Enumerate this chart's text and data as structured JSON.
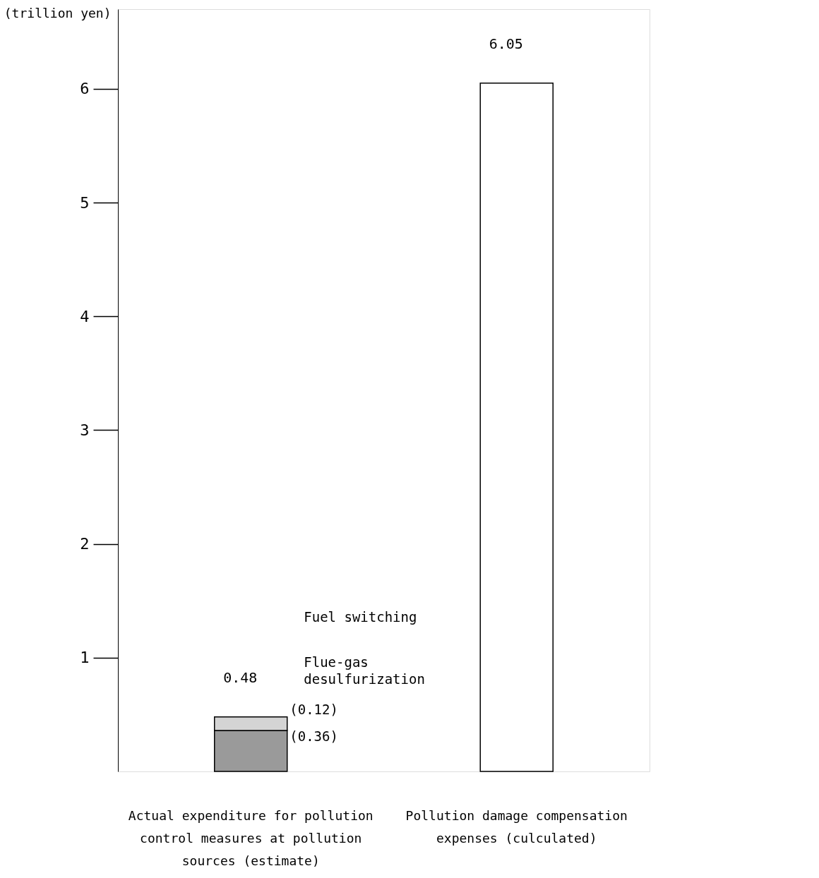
{
  "chart_data": {
    "type": "bar",
    "stacked": true,
    "ylabel": "(trillion yen)",
    "categories": [
      "Actual expenditure for pollution control measures at pollution sources (estimate)",
      "Pollution damage compensation expenses (culculated)"
    ],
    "series": [
      {
        "name": "Flue-gas desulfurization",
        "color": "#9a9a9a",
        "values": [
          0.36,
          null
        ]
      },
      {
        "name": "Fuel switching",
        "color": "#d4d4d4",
        "values": [
          0.12,
          null
        ]
      },
      {
        "color": "#ffffff",
        "values": [
          null,
          6.05
        ]
      }
    ],
    "annotations": [
      {
        "text": "(0.12)",
        "x": "Actual expenditure for pollution control measures at pollution sources (estimate)",
        "y": 0.48
      },
      {
        "text": "(0.36)",
        "x": "Actual expenditure for pollution control measures at pollution sources (estimate)",
        "y": 0.36
      }
    ],
    "totals": [
      "0.48",
      "6.05"
    ],
    "ylim": [
      0,
      6.7
    ],
    "yticks": [
      1,
      2,
      3,
      4,
      5,
      6
    ],
    "grid": false,
    "legend": false
  }
}
